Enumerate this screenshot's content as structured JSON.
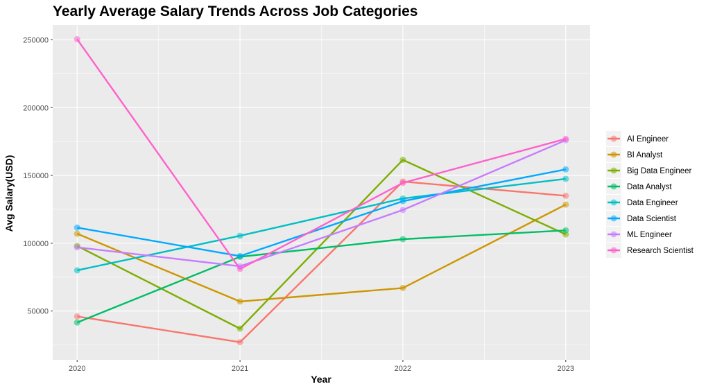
{
  "chart_data": {
    "type": "line",
    "title": "Yearly Average Salary Trends Across Job Categories",
    "xlabel": "Year",
    "ylabel": "Avg Salary(USD)",
    "x": [
      "2020",
      "2021",
      "2022",
      "2023"
    ],
    "x_values": [
      2020,
      2021,
      2022,
      2023
    ],
    "xlim": [
      2019.85,
      2023.15
    ],
    "yticks": [
      50000,
      100000,
      150000,
      200000,
      250000
    ],
    "ytick_labels": [
      "50000",
      "100000",
      "150000",
      "200000",
      "250000"
    ],
    "ylim": [
      14000,
      261000
    ],
    "grid": true,
    "legend_position": "right",
    "series": [
      {
        "name": "AI Engineer",
        "color": "#F8766D",
        "values": [
          46000,
          27000,
          145500,
          135000
        ]
      },
      {
        "name": "BI Analyst",
        "color": "#CD9600",
        "values": [
          107000,
          57000,
          67000,
          128500
        ]
      },
      {
        "name": "Big Data Engineer",
        "color": "#7CAE00",
        "values": [
          98000,
          37000,
          161500,
          106500
        ]
      },
      {
        "name": "Data Analyst",
        "color": "#00BE67",
        "values": [
          41500,
          90000,
          103000,
          109500
        ]
      },
      {
        "name": "Data Engineer",
        "color": "#00BFC4",
        "values": [
          80000,
          105500,
          133000,
          147500
        ]
      },
      {
        "name": "Data Scientist",
        "color": "#00A9FF",
        "values": [
          111500,
          90500,
          131000,
          154500
        ]
      },
      {
        "name": "ML Engineer",
        "color": "#C77CFF",
        "values": [
          97000,
          83000,
          124500,
          176000
        ]
      },
      {
        "name": "Research Scientist",
        "color": "#FF61CC",
        "values": [
          250500,
          81000,
          144500,
          177000
        ]
      }
    ]
  }
}
